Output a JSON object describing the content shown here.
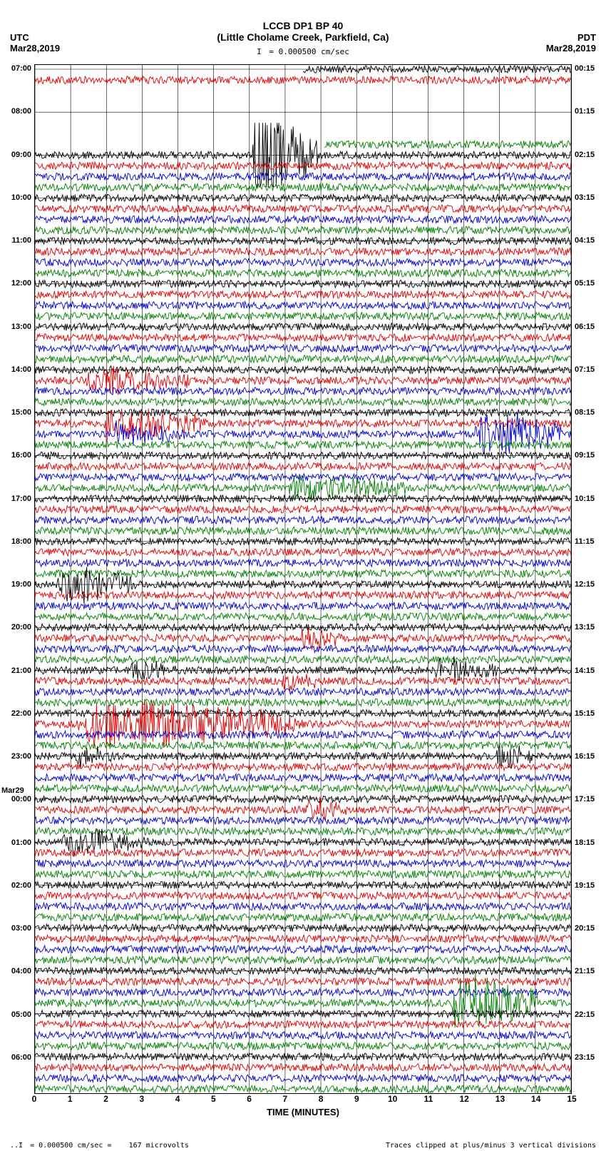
{
  "title": "LCCB DP1 BP 40",
  "subtitle": "(Little Cholame Creek, Parkfield, Ca)",
  "scale_note": "= 0.000500 cm/sec",
  "left_tz_label": "UTC",
  "left_date": "Mar28,2019",
  "right_tz_label": "PDT",
  "right_date": "Mar28,2019",
  "x_label": "TIME (MINUTES)",
  "x_ticks": [
    "0",
    "1",
    "2",
    "3",
    "4",
    "5",
    "6",
    "7",
    "8",
    "9",
    "10",
    "11",
    "12",
    "13",
    "14",
    "15"
  ],
  "footer_left_scale": "= 0.000500 cm/sec =",
  "footer_left_uv": "167 microvolts",
  "footer_right": "Traces clipped at plus/minus 3 vertical divisions",
  "day_change_label": "Mar29",
  "plot": {
    "background": "#ffffff",
    "grid_color": "#000000",
    "n_traces": 96,
    "group_size": 4,
    "trace_colors": [
      "#000000",
      "#e00000",
      "#0000d0",
      "#008000"
    ],
    "hour_spacing_lines": 4,
    "x_domain_minutes": 15,
    "stroke_width": 0.9,
    "noise_amplitude": 0.35,
    "left_hour_labels": [
      {
        "idx": 0,
        "text": "07:00"
      },
      {
        "idx": 4,
        "text": "08:00"
      },
      {
        "idx": 8,
        "text": "09:00"
      },
      {
        "idx": 12,
        "text": "10:00"
      },
      {
        "idx": 16,
        "text": "11:00"
      },
      {
        "idx": 20,
        "text": "12:00"
      },
      {
        "idx": 24,
        "text": "13:00"
      },
      {
        "idx": 28,
        "text": "14:00"
      },
      {
        "idx": 32,
        "text": "15:00"
      },
      {
        "idx": 36,
        "text": "16:00"
      },
      {
        "idx": 40,
        "text": "17:00"
      },
      {
        "idx": 44,
        "text": "18:00"
      },
      {
        "idx": 48,
        "text": "19:00"
      },
      {
        "idx": 52,
        "text": "20:00"
      },
      {
        "idx": 56,
        "text": "21:00"
      },
      {
        "idx": 60,
        "text": "22:00"
      },
      {
        "idx": 64,
        "text": "23:00"
      },
      {
        "idx": 68,
        "text": "00:00"
      },
      {
        "idx": 72,
        "text": "01:00"
      },
      {
        "idx": 76,
        "text": "02:00"
      },
      {
        "idx": 80,
        "text": "03:00"
      },
      {
        "idx": 84,
        "text": "04:00"
      },
      {
        "idx": 88,
        "text": "05:00"
      },
      {
        "idx": 92,
        "text": "06:00"
      }
    ],
    "right_hour_labels": [
      {
        "idx": 0,
        "text": "00:15"
      },
      {
        "idx": 4,
        "text": "01:15"
      },
      {
        "idx": 8,
        "text": "02:15"
      },
      {
        "idx": 12,
        "text": "03:15"
      },
      {
        "idx": 16,
        "text": "04:15"
      },
      {
        "idx": 20,
        "text": "05:15"
      },
      {
        "idx": 24,
        "text": "06:15"
      },
      {
        "idx": 28,
        "text": "07:15"
      },
      {
        "idx": 32,
        "text": "08:15"
      },
      {
        "idx": 36,
        "text": "09:15"
      },
      {
        "idx": 40,
        "text": "10:15"
      },
      {
        "idx": 44,
        "text": "11:15"
      },
      {
        "idx": 48,
        "text": "12:15"
      },
      {
        "idx": 52,
        "text": "13:15"
      },
      {
        "idx": 56,
        "text": "14:15"
      },
      {
        "idx": 60,
        "text": "15:15"
      },
      {
        "idx": 64,
        "text": "16:15"
      },
      {
        "idx": 68,
        "text": "17:15"
      },
      {
        "idx": 72,
        "text": "18:15"
      },
      {
        "idx": 76,
        "text": "19:15"
      },
      {
        "idx": 80,
        "text": "20:15"
      },
      {
        "idx": 84,
        "text": "21:15"
      },
      {
        "idx": 88,
        "text": "22:15"
      },
      {
        "idx": 92,
        "text": "23:15"
      }
    ],
    "day_change_idx": 68,
    "blank_traces": [
      3,
      4,
      5,
      6
    ],
    "partial_traces": {
      "0": {
        "start": 0.5
      },
      "2": {
        "end": 0.84
      },
      "7": {
        "start": 0.54
      }
    },
    "events": [
      {
        "trace": 8,
        "x": 0.41,
        "width": 0.02,
        "amp": 5.0,
        "decay": 0.1
      },
      {
        "trace": 29,
        "x": 0.1,
        "width": 0.04,
        "amp": 1.2,
        "decay": 0.15
      },
      {
        "trace": 33,
        "x": 0.13,
        "width": 0.04,
        "amp": 1.6,
        "decay": 0.15
      },
      {
        "trace": 34,
        "x": 0.83,
        "width": 0.05,
        "amp": 2.2,
        "decay": 0.1
      },
      {
        "trace": 34,
        "x": 0.15,
        "width": 0.03,
        "amp": 1.0,
        "decay": 0.1
      },
      {
        "trace": 39,
        "x": 0.48,
        "width": 0.06,
        "amp": 1.2,
        "decay": 0.15
      },
      {
        "trace": 48,
        "x": 0.05,
        "width": 0.04,
        "amp": 1.8,
        "decay": 0.1
      },
      {
        "trace": 53,
        "x": 0.5,
        "width": 0.02,
        "amp": 1.2,
        "decay": 0.05
      },
      {
        "trace": 56,
        "x": 0.18,
        "width": 0.02,
        "amp": 1.0,
        "decay": 0.08
      },
      {
        "trace": 56,
        "x": 0.75,
        "width": 0.03,
        "amp": 1.0,
        "decay": 0.08
      },
      {
        "trace": 57,
        "x": 0.46,
        "width": 0.02,
        "amp": 1.0,
        "decay": 0.05
      },
      {
        "trace": 61,
        "x": 0.1,
        "width": 0.1,
        "amp": 2.5,
        "decay": 0.3
      },
      {
        "trace": 64,
        "x": 0.08,
        "width": 0.02,
        "amp": 1.0,
        "decay": 0.05
      },
      {
        "trace": 64,
        "x": 0.86,
        "width": 0.02,
        "amp": 1.2,
        "decay": 0.05
      },
      {
        "trace": 69,
        "x": 0.51,
        "width": 0.02,
        "amp": 1.0,
        "decay": 0.05
      },
      {
        "trace": 72,
        "x": 0.06,
        "width": 0.05,
        "amp": 1.4,
        "decay": 0.1
      },
      {
        "trace": 87,
        "x": 0.78,
        "width": 0.04,
        "amp": 2.8,
        "decay": 0.12
      }
    ]
  }
}
